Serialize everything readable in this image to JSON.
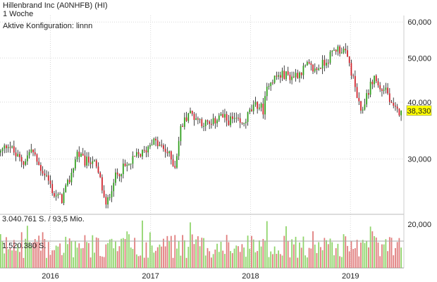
{
  "header": {
    "title": "Hillenbrand Inc (A0NHFB) (HI)",
    "interval": "1 Woche",
    "config": "Aktive Konfiguration: linnn"
  },
  "colors": {
    "up": "#2e9e1b",
    "down": "#d0202a",
    "up_vol": "#8fd46a",
    "down_vol": "#e07c7c",
    "marker": "#ffff00",
    "grid": "#d8d8d8"
  },
  "chart_data": [
    {
      "type": "candlestick",
      "title": "Hillenbrand Inc (A0NHFB) (HI)",
      "interval": "1 Woche",
      "y_scale": "log",
      "ylim": [
        23000,
        62000
      ],
      "y_ticks": [
        30000,
        40000,
        50000,
        60000
      ],
      "y_tick_labels": [
        "30,000",
        "40,000",
        "50,000",
        "60,000"
      ],
      "x_ticks": [
        "2016",
        "2017",
        "2018",
        "2019"
      ],
      "x_tick_dates": [
        "2016-01-01",
        "2017-01-01",
        "2018-01-01",
        "2019-01-01"
      ],
      "last_value_label": "38,330",
      "close_path": [
        [
          "2015-07-03",
          31000
        ],
        [
          "2015-07-31",
          32500
        ],
        [
          "2015-08-28",
          30500
        ],
        [
          "2015-09-25",
          29500
        ],
        [
          "2015-10-23",
          31500
        ],
        [
          "2015-11-20",
          29000
        ],
        [
          "2015-12-18",
          27500
        ],
        [
          "2016-01-15",
          25000
        ],
        [
          "2016-02-12",
          24500
        ],
        [
          "2016-03-11",
          27000
        ],
        [
          "2016-04-08",
          31000
        ],
        [
          "2016-05-06",
          29500
        ],
        [
          "2016-06-03",
          30000
        ],
        [
          "2016-07-01",
          27000
        ],
        [
          "2016-07-22",
          23500
        ],
        [
          "2016-08-19",
          27000
        ],
        [
          "2016-09-16",
          28500
        ],
        [
          "2016-10-14",
          29000
        ],
        [
          "2016-11-11",
          30500
        ],
        [
          "2016-12-09",
          31000
        ],
        [
          "2017-01-06",
          33000
        ],
        [
          "2017-02-03",
          32000
        ],
        [
          "2017-03-03",
          31000
        ],
        [
          "2017-03-31",
          29000
        ],
        [
          "2017-04-21",
          35000
        ],
        [
          "2017-05-19",
          38000
        ],
        [
          "2017-06-16",
          37000
        ],
        [
          "2017-07-14",
          36000
        ],
        [
          "2017-08-11",
          35500
        ],
        [
          "2017-09-08",
          37500
        ],
        [
          "2017-10-06",
          36500
        ],
        [
          "2017-11-03",
          36500
        ],
        [
          "2017-12-01",
          35500
        ],
        [
          "2017-12-29",
          38000
        ],
        [
          "2018-01-26",
          39500
        ],
        [
          "2018-02-16",
          38500
        ],
        [
          "2018-03-09",
          44500
        ],
        [
          "2018-04-06",
          45500
        ],
        [
          "2018-05-04",
          46000
        ],
        [
          "2018-06-01",
          45500
        ],
        [
          "2018-06-29",
          46500
        ],
        [
          "2018-07-27",
          48000
        ],
        [
          "2018-08-24",
          47000
        ],
        [
          "2018-09-21",
          48500
        ],
        [
          "2018-10-19",
          50500
        ],
        [
          "2018-11-09",
          52500
        ],
        [
          "2018-12-07",
          52000
        ],
        [
          "2018-12-28",
          48500
        ],
        [
          "2019-01-18",
          43000
        ],
        [
          "2019-02-08",
          37500
        ],
        [
          "2019-03-01",
          41500
        ],
        [
          "2019-03-29",
          45500
        ],
        [
          "2019-04-19",
          42500
        ],
        [
          "2019-05-10",
          43000
        ],
        [
          "2019-05-31",
          39000
        ],
        [
          "2019-06-21",
          38000
        ],
        [
          "2019-07-05",
          38330
        ]
      ]
    },
    {
      "type": "bar",
      "title": "",
      "y_ticks": [
        20000
      ],
      "y_tick_labels": [
        "20,000"
      ],
      "reference_lines": [
        {
          "label": "3.040.761 S. / 93,5 Mio.",
          "value": 3040761
        },
        {
          "label": "1.520.380 S.",
          "value": 1520380
        }
      ]
    }
  ]
}
